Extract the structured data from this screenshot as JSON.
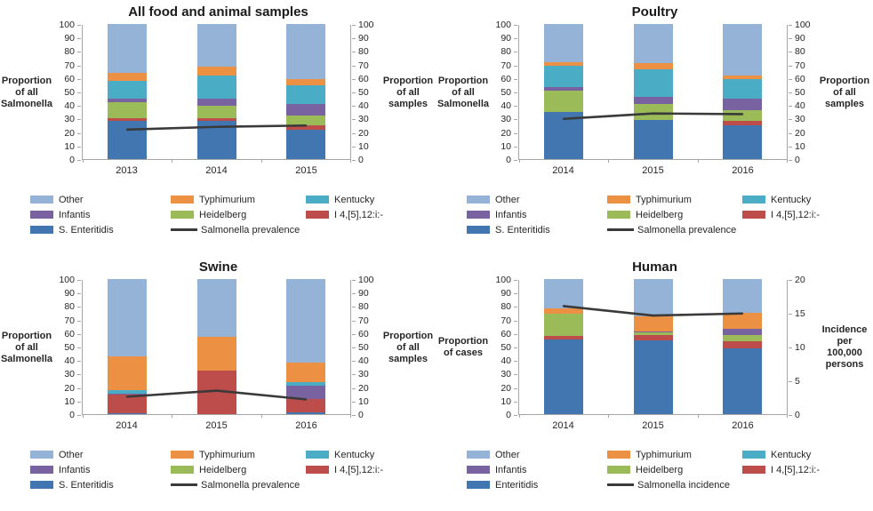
{
  "colors": {
    "other": "#95B3D7",
    "typhimurium": "#EC9144",
    "kentucky": "#4BACC6",
    "infantis": "#7862A0",
    "heidelberg": "#9BBB59",
    "i4": "#BC4D4A",
    "enteritidis": "#4276B1",
    "trend_line": "#3a3a3a",
    "axis_line": "#a6a6a6"
  },
  "chart_data": [
    {
      "type": "stacked-bar-with-line",
      "title": "All food and animal samples",
      "categories": [
        "2013",
        "2014",
        "2015"
      ],
      "left_axis": {
        "label_lines": [
          "Proportion",
          "of all",
          "Salmonella"
        ],
        "min": 0,
        "max": 100,
        "step": 10
      },
      "right_axis": {
        "label_lines": [
          "Proportion",
          "of all",
          "samples"
        ],
        "min": 0,
        "max": 100,
        "step": 10
      },
      "stack_order": [
        "enteritidis",
        "i4",
        "heidelberg",
        "infantis",
        "kentucky",
        "typhimurium",
        "other"
      ],
      "legend_order": [
        "other",
        "typhimurium",
        "kentucky",
        "infantis",
        "heidelberg",
        "i4",
        "enteritidis",
        "line"
      ],
      "series": [
        {
          "key": "enteritidis",
          "name": "S. Enteritidis",
          "values": [
            28,
            28,
            22
          ]
        },
        {
          "key": "i4",
          "name": "I 4,[5],12:i:-",
          "values": [
            2,
            2.5,
            3
          ]
        },
        {
          "key": "heidelberg",
          "name": "Heidelberg",
          "values": [
            12,
            9,
            7
          ]
        },
        {
          "key": "infantis",
          "name": "Infantis",
          "values": [
            3,
            5,
            8.5
          ]
        },
        {
          "key": "kentucky",
          "name": "Kentucky",
          "values": [
            13,
            17.5,
            14
          ]
        },
        {
          "key": "typhimurium",
          "name": "Typhimurium",
          "values": [
            6,
            6.5,
            4.5
          ]
        },
        {
          "key": "other",
          "name": "Other",
          "values": [
            36,
            31.5,
            41
          ]
        }
      ],
      "line": {
        "name": "Salmonella prevalence",
        "values": [
          22,
          24,
          25
        ],
        "axis": "right"
      },
      "legend_position": "bottom"
    },
    {
      "type": "stacked-bar-with-line",
      "title": "Poultry",
      "categories": [
        "2014",
        "2015",
        "2016"
      ],
      "left_axis": {
        "label_lines": [
          "Proportion",
          "of all",
          "Salmonella"
        ],
        "min": 0,
        "max": 100,
        "step": 10
      },
      "right_axis": {
        "label_lines": [
          "Proportion",
          "of all",
          "samples"
        ],
        "min": 0,
        "max": 100,
        "step": 10
      },
      "stack_order": [
        "enteritidis",
        "i4",
        "heidelberg",
        "infantis",
        "kentucky",
        "typhimurium",
        "other"
      ],
      "legend_order": [
        "other",
        "typhimurium",
        "kentucky",
        "infantis",
        "heidelberg",
        "i4",
        "enteritidis",
        "line"
      ],
      "series": [
        {
          "key": "enteritidis",
          "name": "S. Enteritidis",
          "values": [
            35,
            29,
            25
          ]
        },
        {
          "key": "i4",
          "name": "I 4,[5],12:i:-",
          "values": [
            0,
            0,
            3
          ]
        },
        {
          "key": "heidelberg",
          "name": "Heidelberg",
          "values": [
            15.5,
            12,
            8.5
          ]
        },
        {
          "key": "infantis",
          "name": "Infantis",
          "values": [
            3,
            5,
            8.5
          ]
        },
        {
          "key": "kentucky",
          "name": "Kentucky",
          "values": [
            15.5,
            20.5,
            14
          ]
        },
        {
          "key": "typhimurium",
          "name": "Typhimurium",
          "values": [
            3,
            4.5,
            3
          ]
        },
        {
          "key": "other",
          "name": "Other",
          "values": [
            28,
            29,
            38
          ]
        }
      ],
      "line": {
        "name": "Salmonella prevalence",
        "values": [
          30,
          34,
          33.5
        ],
        "axis": "right"
      },
      "legend_position": "bottom"
    },
    {
      "type": "stacked-bar-with-line",
      "title": "Swine",
      "categories": [
        "2014",
        "2015",
        "2016"
      ],
      "left_axis": {
        "label_lines": [
          "Proportion",
          "of all",
          "Salmonella"
        ],
        "min": 0,
        "max": 100,
        "step": 10
      },
      "right_axis": {
        "label_lines": [
          "Proportion",
          "of all",
          "samples"
        ],
        "min": 0,
        "max": 100,
        "step": 10
      },
      "stack_order": [
        "enteritidis",
        "i4",
        "heidelberg",
        "infantis",
        "kentucky",
        "typhimurium",
        "other"
      ],
      "legend_order": [
        "other",
        "typhimurium",
        "kentucky",
        "infantis",
        "heidelberg",
        "i4",
        "enteritidis",
        "line"
      ],
      "series": [
        {
          "key": "enteritidis",
          "name": "S. Enteritidis",
          "values": [
            0.5,
            0,
            1.5
          ]
        },
        {
          "key": "i4",
          "name": "I 4,[5],12:i:-",
          "values": [
            14,
            32.5,
            10
          ]
        },
        {
          "key": "heidelberg",
          "name": "Heidelberg",
          "values": [
            0,
            0,
            0
          ]
        },
        {
          "key": "infantis",
          "name": "Infantis",
          "values": [
            0.5,
            0,
            9.5
          ]
        },
        {
          "key": "kentucky",
          "name": "Kentucky",
          "values": [
            2.5,
            0,
            3
          ]
        },
        {
          "key": "typhimurium",
          "name": "Typhimurium",
          "values": [
            25.5,
            24.5,
            14
          ]
        },
        {
          "key": "other",
          "name": "Other",
          "values": [
            57,
            43,
            62
          ]
        }
      ],
      "line": {
        "name": "Salmonella prevalence",
        "values": [
          13,
          17.5,
          11
        ],
        "axis": "right"
      },
      "legend_position": "bottom"
    },
    {
      "type": "stacked-bar-with-line",
      "title": "Human",
      "categories": [
        "2014",
        "2015",
        "2016"
      ],
      "left_axis": {
        "label_lines": [
          "Proportion",
          "of cases"
        ],
        "min": 0,
        "max": 100,
        "step": 10
      },
      "right_axis": {
        "label_lines": [
          "Incidence",
          "per",
          "100,000",
          "persons"
        ],
        "min": 0,
        "max": 20,
        "step": 5
      },
      "stack_order": [
        "enteritidis",
        "i4",
        "heidelberg",
        "infantis",
        "kentucky",
        "typhimurium",
        "other"
      ],
      "legend_order": [
        "other",
        "typhimurium",
        "kentucky",
        "infantis",
        "heidelberg",
        "i4",
        "enteritidis",
        "line"
      ],
      "series": [
        {
          "key": "enteritidis",
          "name": "Enteritidis",
          "values": [
            55,
            54.5,
            49
          ]
        },
        {
          "key": "i4",
          "name": "I 4,[5],12:i:-",
          "values": [
            3,
            4,
            5
          ]
        },
        {
          "key": "heidelberg",
          "name": "Heidelberg",
          "values": [
            16.5,
            2,
            4.5
          ]
        },
        {
          "key": "infantis",
          "name": "Infantis",
          "values": [
            0,
            0.5,
            4.5
          ]
        },
        {
          "key": "kentucky",
          "name": "Kentucky",
          "values": [
            0,
            0,
            0
          ]
        },
        {
          "key": "typhimurium",
          "name": "Typhimurium",
          "values": [
            3.5,
            11.5,
            12
          ]
        },
        {
          "key": "other",
          "name": "Other",
          "values": [
            22,
            27.5,
            25
          ]
        }
      ],
      "line": {
        "name": "Salmonella incidence",
        "values": [
          16.1,
          14.7,
          15
        ],
        "axis": "right"
      },
      "legend_position": "bottom"
    }
  ]
}
